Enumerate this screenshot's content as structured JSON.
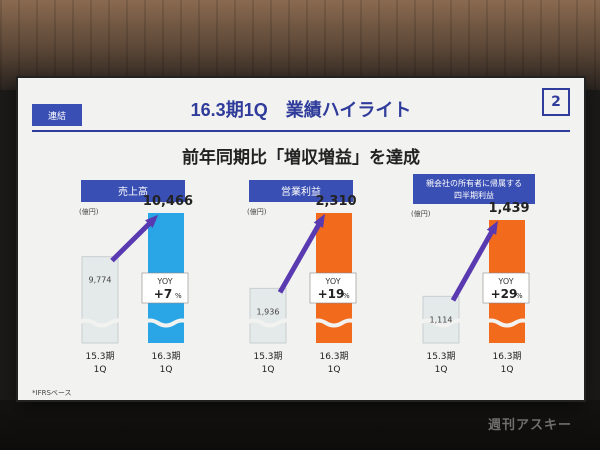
{
  "slide": {
    "tag": "連結",
    "title": "16.3期1Q　業績ハイライト",
    "page_number": "2",
    "subtitle": "前年同期比「増収増益」を達成",
    "footnote": "*IFRSベース"
  },
  "watermark": "週刊アスキー",
  "colors": {
    "accent": "#2f3c9b",
    "label_box": "#3a4fb3",
    "bar_prev": "#e4e9ea",
    "bar_sales": "#2aa6e6",
    "bar_profit": "#f26a1b",
    "arrow": "#5a3ab0"
  },
  "chart_data": [
    {
      "type": "bar",
      "title": "売上高",
      "unit": "(億円)",
      "categories": [
        "15.3期\n1Q",
        "16.3期\n1Q"
      ],
      "values": [
        9774,
        10466
      ],
      "value_labels": [
        "9,774",
        "10,466"
      ],
      "yoy_label": "YOY",
      "yoy_value": "+7",
      "yoy_unit": "%"
    },
    {
      "type": "bar",
      "title": "営業利益",
      "unit": "(億円)",
      "categories": [
        "15.3期\n1Q",
        "16.3期\n1Q"
      ],
      "values": [
        1936,
        2310
      ],
      "value_labels": [
        "1,936",
        "2,310"
      ],
      "yoy_label": "YOY",
      "yoy_value": "+19",
      "yoy_unit": "%"
    },
    {
      "type": "bar",
      "title": "親会社の所有者に帰属する\n四半期利益",
      "unit": "(億円)",
      "categories": [
        "15.3期\n1Q",
        "16.3期\n1Q"
      ],
      "values": [
        1114,
        1439
      ],
      "value_labels": [
        "1,114",
        "1,439"
      ],
      "yoy_label": "YOY",
      "yoy_value": "+29",
      "yoy_unit": "%"
    }
  ]
}
